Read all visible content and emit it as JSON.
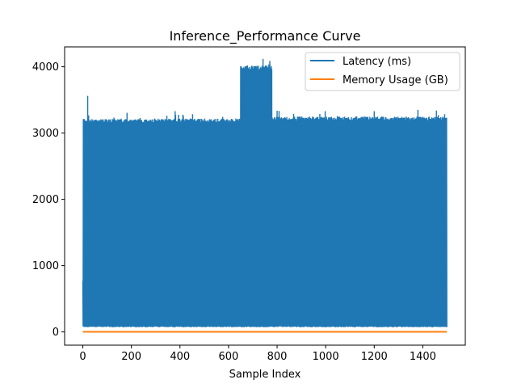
{
  "chart_data": {
    "type": "line",
    "title": "Inference_Performance Curve",
    "xlabel": "Sample Index",
    "ylabel": "",
    "xlim": [
      -75,
      1575
    ],
    "ylim": [
      -200,
      4300
    ],
    "xticks": [
      0,
      200,
      400,
      600,
      800,
      1000,
      1200,
      1400
    ],
    "yticks": [
      0,
      1000,
      2000,
      3000,
      4000
    ],
    "grid": false,
    "legend_position": "top-right",
    "sample_count": 1500,
    "series": [
      {
        "name": "Latency (ms)",
        "color": "#1f77b4",
        "x_range": [
          0,
          1499
        ],
        "value_bands": [
          {
            "x_range": [
              0,
              649
            ],
            "low": 70,
            "high": 3200,
            "peaks": [
              {
                "x": 20,
                "y": 3560
              },
              {
                "x": 125,
                "y": 3320
              },
              {
                "x": 380,
                "y": 3330
              }
            ]
          },
          {
            "x_range": [
              650,
              779
            ],
            "low": 70,
            "high": 4000,
            "peaks": [
              {
                "x": 765,
                "y": 4100
              }
            ]
          },
          {
            "x_range": [
              780,
              1499
            ],
            "low": 70,
            "high": 3230,
            "peaks": [
              {
                "x": 1200,
                "y": 3330
              },
              {
                "x": 1380,
                "y": 3350
              }
            ]
          }
        ],
        "dips": [
          {
            "x": 0,
            "y": 770
          },
          {
            "x": 118,
            "y": 880
          },
          {
            "x": 200,
            "y": 1250
          },
          {
            "x": 215,
            "y": 1720
          },
          {
            "x": 290,
            "y": 190
          },
          {
            "x": 345,
            "y": 1370
          },
          {
            "x": 520,
            "y": 2470
          },
          {
            "x": 578,
            "y": 730
          },
          {
            "x": 690,
            "y": 150
          },
          {
            "x": 728,
            "y": 800
          },
          {
            "x": 855,
            "y": 2330
          },
          {
            "x": 880,
            "y": 1380
          },
          {
            "x": 995,
            "y": 2100
          },
          {
            "x": 1015,
            "y": 1500
          },
          {
            "x": 1216,
            "y": 140
          },
          {
            "x": 1293,
            "y": 1300
          },
          {
            "x": 1362,
            "y": 1520
          },
          {
            "x": 1420,
            "y": 2470
          }
        ]
      },
      {
        "name": "Memory Usage (GB)",
        "color": "#ff7f0e",
        "x_range": [
          0,
          1499
        ],
        "values_constant": 1.5
      }
    ]
  }
}
